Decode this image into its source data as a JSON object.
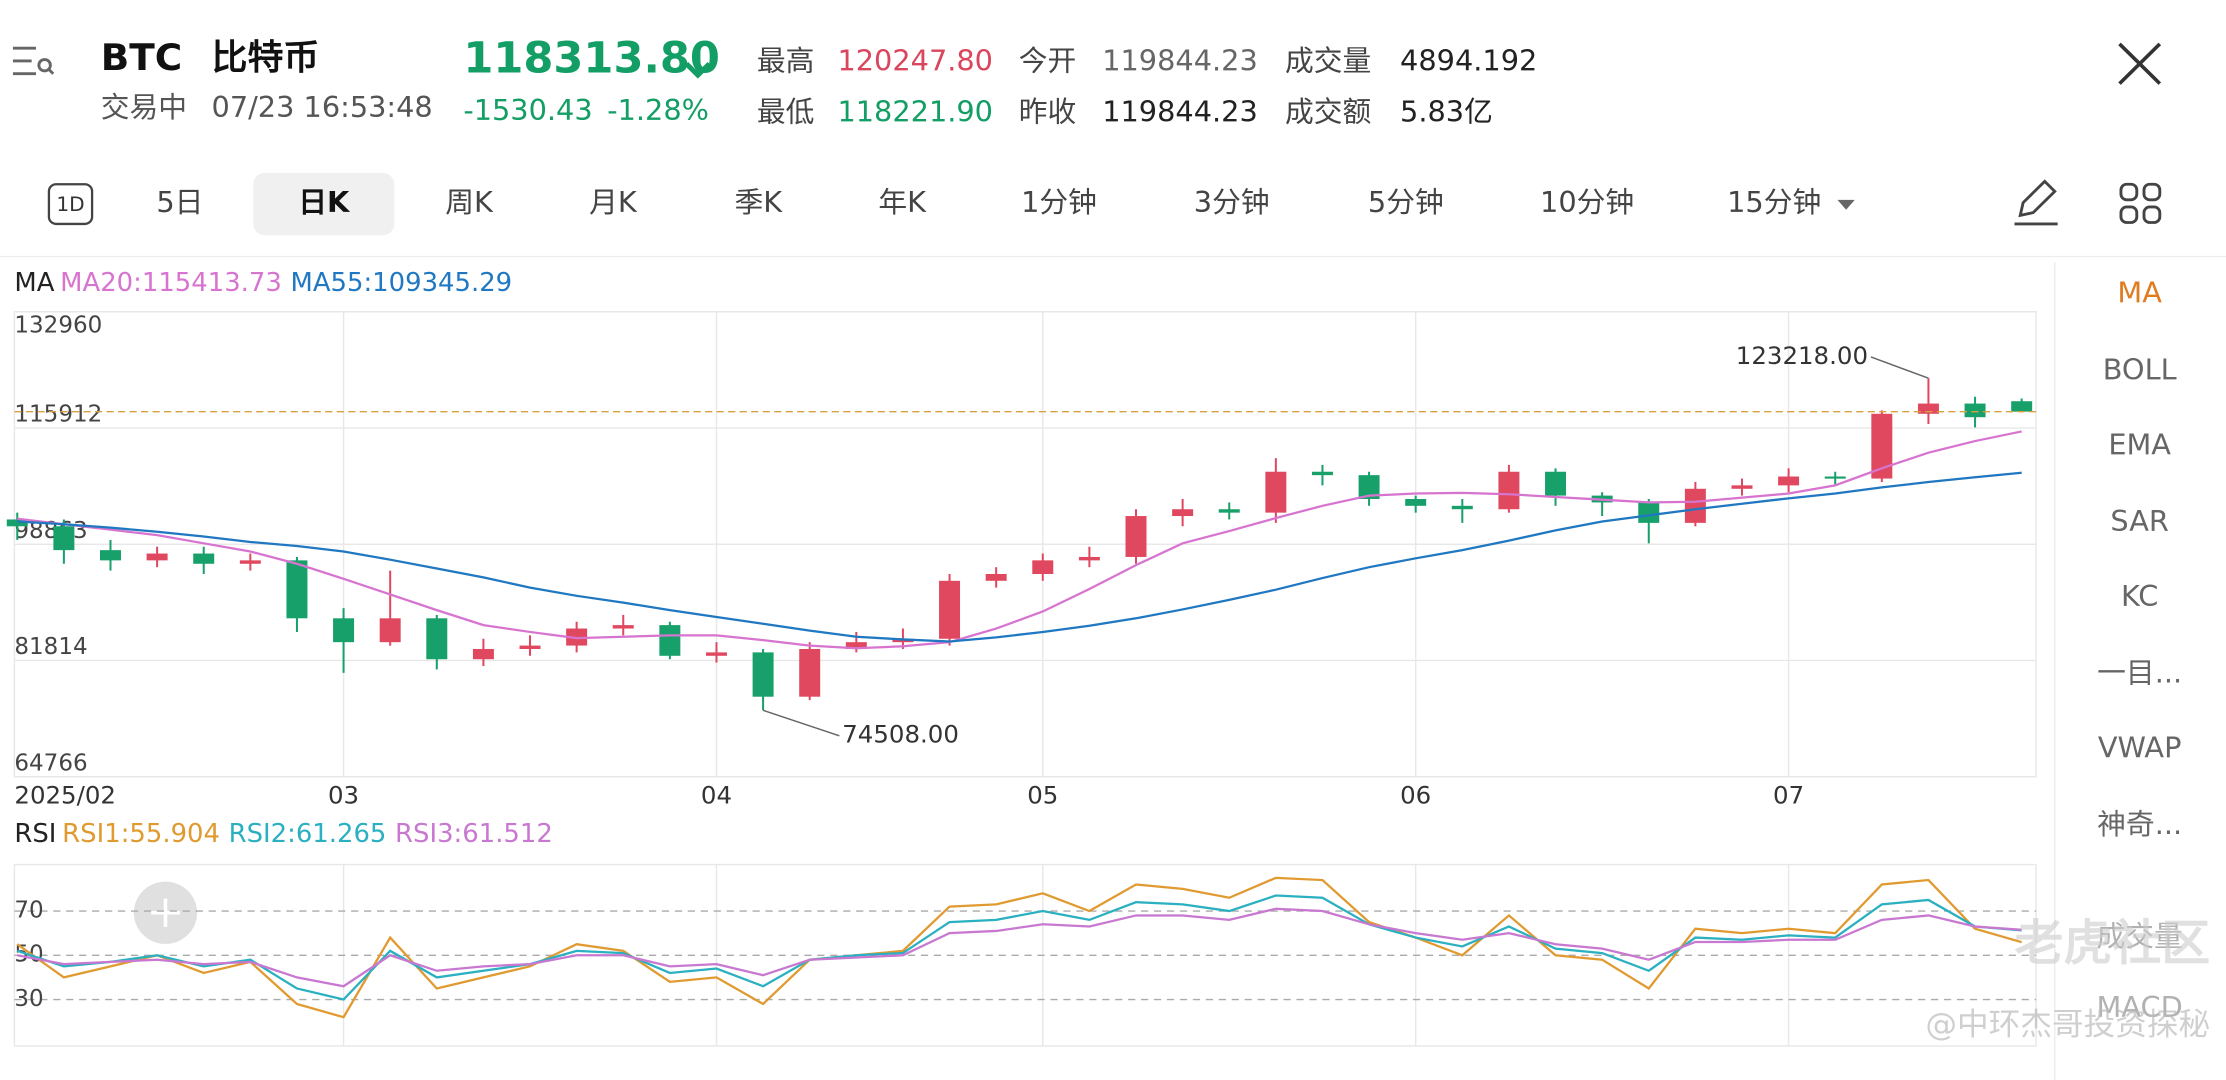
{
  "header": {
    "symbol": "BTC",
    "name": "比特币",
    "status": "交易中",
    "time": "07/23 16:53:48",
    "price": "118313.80",
    "change": "-1530.43",
    "change_pct": "-1.28%",
    "stats": [
      {
        "label": "最高",
        "value": "120247.80",
        "color": "#d9465e"
      },
      {
        "label": "最低",
        "value": "118221.90",
        "color": "#139e66"
      },
      {
        "label": "今开",
        "value": "119844.23",
        "color": "#666666"
      },
      {
        "label": "昨收",
        "value": "119844.23",
        "color": "#222222"
      },
      {
        "label": "成交量",
        "value": "4894.192",
        "color": "#222222"
      },
      {
        "label": "成交额",
        "value": "5.83亿",
        "color": "#222222"
      }
    ]
  },
  "tabs": {
    "icon": "1D",
    "items": [
      "5日",
      "日K",
      "周K",
      "月K",
      "季K",
      "年K",
      "1分钟",
      "3分钟",
      "5分钟",
      "10分钟",
      "15分钟"
    ],
    "selected": 1
  },
  "side_menu": {
    "items": [
      "MA",
      "BOLL",
      "EMA",
      "SAR",
      "KC",
      "一目...",
      "VWAP",
      "神奇...",
      "成交量",
      "MACD"
    ],
    "selected": 0
  },
  "watermark": [
    "老虎社区",
    "@中环杰哥投资探秘"
  ],
  "chart_data": [
    {
      "type": "candlestick",
      "categories": [
        "2025/02",
        null,
        null,
        null,
        null,
        null,
        null,
        "03",
        null,
        null,
        null,
        null,
        null,
        null,
        null,
        "04",
        null,
        null,
        null,
        null,
        null,
        null,
        "05",
        null,
        null,
        null,
        null,
        null,
        null,
        null,
        "06",
        null,
        null,
        null,
        null,
        null,
        null,
        null,
        "07",
        null,
        null,
        null,
        null,
        null
      ],
      "open": [
        102500,
        101500,
        98000,
        96500,
        97500,
        96000,
        96500,
        88000,
        84500,
        88000,
        82000,
        83500,
        84000,
        86500,
        87000,
        82500,
        83000,
        76500,
        83500,
        84500,
        85000,
        93500,
        94500,
        96500,
        97000,
        103000,
        104000,
        103500,
        109500,
        109000,
        105500,
        104500,
        104000,
        109500,
        106000,
        105000,
        102000,
        107000,
        107500,
        108800,
        108500,
        118000,
        119500,
        119844.23
      ],
      "high": [
        103500,
        102500,
        99500,
        98500,
        98500,
        97500,
        97000,
        89500,
        95000,
        88500,
        85000,
        85500,
        87500,
        88500,
        87500,
        84500,
        83500,
        84500,
        86000,
        86500,
        94500,
        95500,
        97500,
        98500,
        104000,
        105500,
        105000,
        111500,
        110500,
        109500,
        106000,
        105500,
        110500,
        110000,
        106500,
        105500,
        108000,
        108500,
        110000,
        109500,
        118500,
        123218,
        120500,
        120247.8
      ],
      "low": [
        99500,
        96000,
        95000,
        95500,
        94500,
        95000,
        86000,
        80000,
        84000,
        80500,
        81000,
        82500,
        83000,
        85500,
        82000,
        81500,
        74508,
        76000,
        83000,
        83500,
        84000,
        92500,
        93500,
        95500,
        96000,
        101500,
        102500,
        102000,
        107500,
        104500,
        103500,
        102000,
        103500,
        104500,
        103000,
        99000,
        101500,
        106000,
        106500,
        107500,
        108000,
        116500,
        116000,
        118221.9
      ],
      "close": [
        101500,
        98000,
        96500,
        97500,
        96000,
        96500,
        88000,
        84500,
        88000,
        82000,
        83500,
        84000,
        86500,
        87000,
        82500,
        83000,
        76500,
        83500,
        84500,
        85000,
        93500,
        94500,
        96500,
        97000,
        103000,
        104000,
        103500,
        109500,
        109000,
        105500,
        104500,
        104000,
        109500,
        106000,
        105000,
        102000,
        107000,
        107500,
        108800,
        108500,
        118000,
        119500,
        117500,
        118313.8
      ],
      "up_color": "#e0485f",
      "down_color": "#17a06a",
      "series": [
        {
          "name": "MA20",
          "color": "#d774d0",
          "values": [
            102600,
            101800,
            101000,
            100200,
            99000,
            97800,
            96000,
            93800,
            91500,
            89200,
            87000,
            86000,
            85100,
            85300,
            85500,
            85500,
            84800,
            84000,
            83600,
            83900,
            84500,
            86500,
            89000,
            92300,
            95800,
            99000,
            100800,
            102700,
            104500,
            106000,
            106300,
            106400,
            106200,
            105800,
            105400,
            105000,
            105100,
            105700,
            106300,
            107500,
            110000,
            112300,
            114000,
            115413.73
          ]
        },
        {
          "name": "MA55",
          "color": "#1f78c1",
          "values": [
            102200,
            101800,
            101300,
            100700,
            100000,
            99200,
            98600,
            97800,
            96600,
            95300,
            94000,
            92500,
            91300,
            90300,
            89200,
            88200,
            87200,
            86200,
            85300,
            84900,
            84600,
            85200,
            86000,
            86900,
            88000,
            89300,
            90700,
            92200,
            93900,
            95500,
            96800,
            98000,
            99400,
            100900,
            102200,
            103100,
            104000,
            104800,
            105600,
            106300,
            107200,
            108000,
            108700,
            109345.29
          ]
        }
      ],
      "legend": {
        "title": "MA",
        "items": [
          "MA20:115413.73",
          "MA55:109345.29"
        ]
      },
      "annotations": [
        {
          "value": 123218,
          "label": "123218.00",
          "index": 41
        },
        {
          "value": 74508,
          "label": "74508.00",
          "index": 16
        }
      ],
      "price_line": 118313.8,
      "ylim": [
        64766,
        132960
      ],
      "yticks": [
        132960,
        115912,
        98863,
        81814,
        64766
      ],
      "grid": true
    },
    {
      "type": "line",
      "series": [
        {
          "name": "RSI1",
          "color": "#e09a30",
          "values": [
            55,
            40,
            45,
            50,
            42,
            47,
            28,
            22,
            58,
            35,
            40,
            45,
            55,
            52,
            38,
            40,
            28,
            48,
            50,
            52,
            72,
            73,
            78,
            70,
            82,
            80,
            76,
            85,
            84,
            65,
            58,
            50,
            68,
            50,
            48,
            35,
            62,
            60,
            62,
            60,
            82,
            84,
            62,
            55.904
          ]
        },
        {
          "name": "RSI2",
          "color": "#2ab0c0",
          "values": [
            52,
            45,
            47,
            50,
            45,
            48,
            35,
            30,
            52,
            40,
            43,
            46,
            52,
            51,
            42,
            44,
            36,
            48,
            50,
            51,
            65,
            66,
            70,
            66,
            74,
            73,
            70,
            77,
            76,
            64,
            58,
            54,
            63,
            53,
            51,
            43,
            58,
            57,
            59,
            58,
            73,
            75,
            63,
            61.265
          ]
        },
        {
          "name": "RSI3",
          "color": "#c878d0",
          "values": [
            50,
            46,
            47,
            48,
            46,
            47,
            40,
            36,
            50,
            43,
            45,
            46,
            50,
            50,
            45,
            46,
            41,
            48,
            49,
            50,
            60,
            61,
            64,
            63,
            68,
            68,
            66,
            71,
            70,
            64,
            60,
            57,
            60,
            55,
            53,
            48,
            56,
            56,
            57,
            57,
            66,
            68,
            63,
            61.512
          ]
        }
      ],
      "legend": {
        "title": "RSI",
        "items": [
          "RSI1:55.904",
          "RSI2:61.265",
          "RSI3:61.512"
        ]
      },
      "ylim": [
        9,
        91
      ],
      "yticks": [
        30,
        50,
        70
      ],
      "grid": true
    }
  ]
}
